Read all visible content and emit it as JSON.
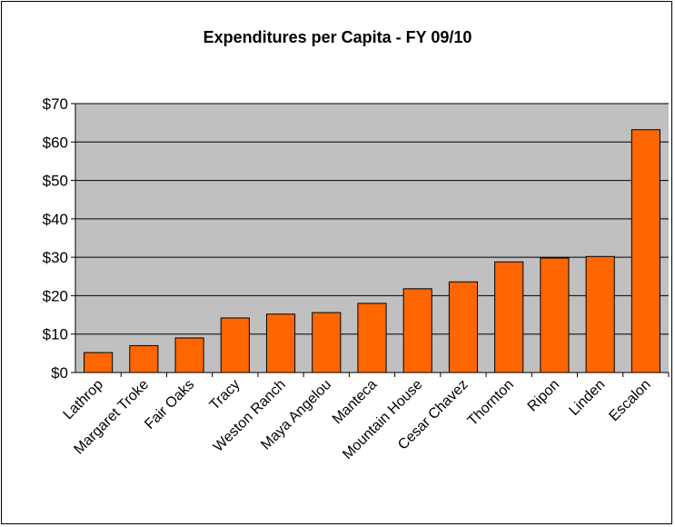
{
  "chart_data": {
    "type": "bar",
    "title": "Expenditures per Capita - FY 09/10",
    "categories": [
      "Lathrop",
      "Margaret Troke",
      "Fair Oaks",
      "Tracy",
      "Weston Ranch",
      "Maya Angelou",
      "Manteca",
      "Mountain House",
      "Cesar Chavez",
      "Thornton",
      "Ripon",
      "Linden",
      "Escalon"
    ],
    "values": [
      5.2,
      7.0,
      9.0,
      14.2,
      15.2,
      15.6,
      18.0,
      21.8,
      23.6,
      28.8,
      29.8,
      30.2,
      63.2
    ],
    "ylim": [
      0,
      70
    ],
    "yticks": [
      "$0",
      "$10",
      "$20",
      "$30",
      "$40",
      "$50",
      "$60",
      "$70"
    ],
    "xlabel": "",
    "ylabel": "",
    "grid": true,
    "legend": "none",
    "colors": {
      "bar": "#FF6600",
      "plot_background": "#C0C0C0",
      "grid": "#000000"
    }
  }
}
